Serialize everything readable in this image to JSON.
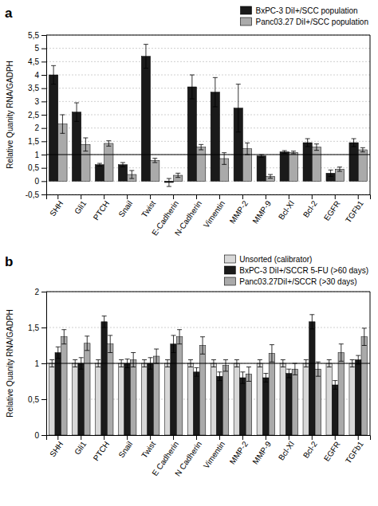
{
  "chart_data": [
    {
      "type": "bar",
      "title": "a",
      "categories": [
        "SHH",
        "Gli1",
        "PTCH",
        "Snail",
        "Twist",
        "E-Cadherin",
        "N-Cadherin",
        "Vimentin",
        "MMP-2",
        "MMP-9",
        "Bcl-Xl",
        "Bcl-2",
        "EGFR",
        "TGFb1"
      ],
      "series": [
        {
          "name": "BxPC-3 DiI+/SCC population",
          "color": "#1a1a1a",
          "values": [
            4.0,
            2.6,
            0.62,
            0.62,
            4.7,
            -0.05,
            3.55,
            3.35,
            2.75,
            0.95,
            1.1,
            1.45,
            0.3,
            1.45
          ],
          "errors": [
            0.35,
            0.35,
            0.05,
            0.08,
            0.45,
            0.15,
            0.45,
            0.55,
            0.9,
            0.05,
            0.05,
            0.15,
            0.12,
            0.15
          ]
        },
        {
          "name": "Panc03.27 DiI+/SCC population",
          "color": "#aaaaaa",
          "values": [
            2.15,
            1.38,
            1.42,
            0.25,
            0.78,
            0.22,
            1.28,
            0.85,
            1.22,
            0.18,
            1.08,
            1.28,
            0.45,
            1.18
          ],
          "errors": [
            0.35,
            0.25,
            0.1,
            0.15,
            0.08,
            0.08,
            0.1,
            0.22,
            0.22,
            0.07,
            0.05,
            0.12,
            0.08,
            0.08
          ]
        }
      ],
      "ylabel": "Relative Quanity RNA/GADPH",
      "ylim": [
        -0.5,
        5.5
      ],
      "yticks": [
        {
          "value": -0.5,
          "label": "-0,5"
        },
        0,
        {
          "value": 0.5,
          "label": "0,5"
        },
        1,
        {
          "value": 1.5,
          "label": "1,5"
        },
        2,
        {
          "value": 2.5,
          "label": "2,5"
        },
        3,
        {
          "value": 3.5,
          "label": "3,5"
        },
        4,
        {
          "value": 4.5,
          "label": "4,5"
        },
        5,
        {
          "value": 5.5,
          "label": "5,5"
        }
      ],
      "reference_line": 1,
      "grid": true,
      "legend": "upper right"
    },
    {
      "type": "bar",
      "title": "b",
      "categories": [
        "SHH",
        "Gli1",
        "PTCH",
        "Snail",
        "Twist",
        "E Cadherin",
        "N Cadherin",
        "Vimentin",
        "MMP-2",
        "MMP-9",
        "Bcl-Xl",
        "Bcl-2",
        "EGFR",
        "TGFb1"
      ],
      "series": [
        {
          "name": "Unsorted (calibrator)",
          "color": "#d8d8d8",
          "values": [
            1.0,
            1.0,
            1.0,
            1.0,
            1.0,
            1.0,
            1.0,
            1.0,
            1.0,
            1.0,
            1.0,
            1.0,
            1.0,
            1.0
          ],
          "errors": [
            0.05,
            0.05,
            0.05,
            0.05,
            0.05,
            0.05,
            0.05,
            0.05,
            0.05,
            0.05,
            0.05,
            0.05,
            0.05,
            0.05
          ]
        },
        {
          "name": "BxPC-3 DiI+/SCCR 5-FU (>60 days)",
          "color": "#1a1a1a",
          "values": [
            1.15,
            1.0,
            1.58,
            1.0,
            1.0,
            1.27,
            0.88,
            0.82,
            0.8,
            0.8,
            0.86,
            1.58,
            0.7,
            1.05
          ],
          "errors": [
            0.08,
            0.08,
            0.08,
            0.06,
            0.08,
            0.12,
            0.06,
            0.06,
            0.08,
            0.06,
            0.06,
            0.1,
            0.06,
            0.06
          ]
        },
        {
          "name": "Panc03.27DiI+/SCCR (>30 days)",
          "color": "#aaaaaa",
          "values": [
            1.37,
            1.28,
            1.27,
            1.05,
            1.1,
            1.37,
            1.25,
            0.97,
            0.85,
            1.14,
            0.92,
            0.92,
            1.15,
            1.37
          ],
          "errors": [
            0.1,
            0.1,
            0.12,
            0.1,
            0.1,
            0.1,
            0.12,
            0.08,
            0.1,
            0.12,
            0.08,
            0.1,
            0.12,
            0.12
          ]
        }
      ],
      "ylabel": "Relative Quanity RNA/GADPH",
      "ylim": [
        0,
        2.0
      ],
      "yticks": [
        0,
        {
          "value": 0.5,
          "label": "0,5"
        },
        1,
        {
          "value": 1.5,
          "label": "1,5"
        },
        2
      ],
      "reference_line": 1,
      "grid": true,
      "legend": "upper right"
    }
  ]
}
